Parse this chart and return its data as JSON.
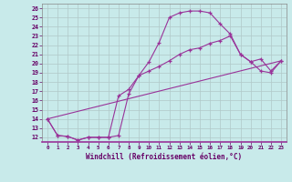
{
  "xlabel": "Windchill (Refroidissement éolien,°C)",
  "bg_color": "#c8eaea",
  "line_color": "#993399",
  "grid_color": "#b0c8c8",
  "axis_label_color": "#660066",
  "tick_label_color": "#660066",
  "spine_color": "#888888",
  "xlim": [
    -0.5,
    23.5
  ],
  "ylim": [
    11.5,
    26.5
  ],
  "yticks": [
    12,
    13,
    14,
    15,
    16,
    17,
    18,
    19,
    20,
    21,
    22,
    23,
    24,
    25,
    26
  ],
  "xticks": [
    0,
    1,
    2,
    3,
    4,
    5,
    6,
    7,
    8,
    9,
    10,
    11,
    12,
    13,
    14,
    15,
    16,
    17,
    18,
    19,
    20,
    21,
    22,
    23
  ],
  "curve1_x": [
    0,
    1,
    2,
    3,
    4,
    5,
    6,
    7,
    8,
    9,
    10,
    11,
    12,
    13,
    14,
    15,
    16,
    17,
    18,
    19,
    20,
    21,
    22,
    23
  ],
  "curve1_y": [
    14.0,
    12.2,
    12.1,
    11.7,
    12.0,
    12.0,
    12.0,
    12.2,
    16.7,
    18.7,
    20.2,
    22.3,
    25.0,
    25.5,
    25.7,
    25.7,
    25.5,
    24.3,
    23.2,
    21.0,
    20.2,
    19.2,
    19.0,
    20.3
  ],
  "curve2_x": [
    0,
    1,
    2,
    3,
    4,
    5,
    6,
    7,
    8,
    9,
    10,
    11,
    12,
    13,
    14,
    15,
    16,
    17,
    18,
    19,
    20,
    21,
    22,
    23
  ],
  "curve2_y": [
    14.0,
    12.2,
    12.1,
    11.7,
    12.0,
    12.0,
    12.0,
    16.5,
    17.2,
    18.7,
    19.2,
    19.7,
    20.3,
    21.0,
    21.5,
    21.7,
    22.2,
    22.5,
    23.0,
    21.0,
    20.2,
    20.5,
    19.2,
    20.3
  ],
  "curve3_x": [
    0,
    23
  ],
  "curve3_y": [
    14.0,
    20.3
  ]
}
